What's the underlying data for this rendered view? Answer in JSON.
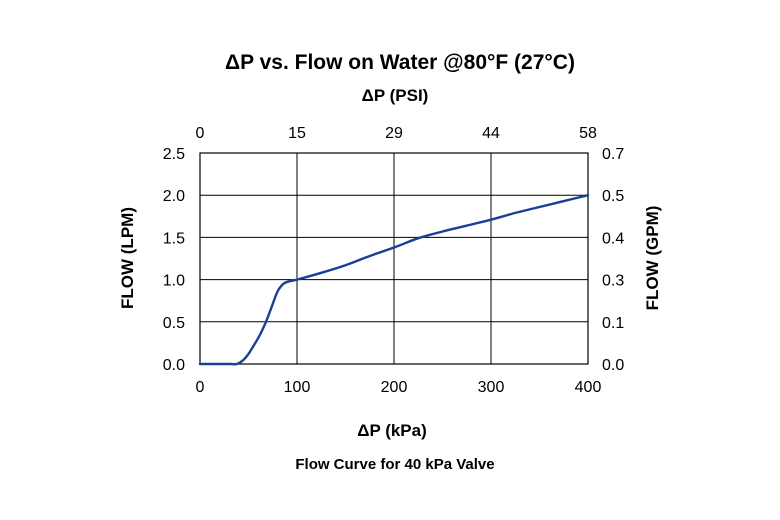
{
  "chart_data": {
    "type": "line",
    "title": "ΔP vs. Flow on Water @80°F (27°C)",
    "caption": "Flow Curve for 40 kPa Valve",
    "x_axis": {
      "label": "ΔP (kPa)",
      "range": [
        0,
        400
      ],
      "ticks": [
        "0",
        "100",
        "200",
        "300",
        "400"
      ]
    },
    "x2_axis": {
      "label": "ΔP (PSI)",
      "range": [
        0,
        58
      ],
      "ticks": [
        "0",
        "15",
        "29",
        "44",
        "58"
      ]
    },
    "y_axis": {
      "label": "FLOW (LPM)",
      "range": [
        0,
        2.5
      ],
      "ticks": [
        "0.0",
        "0.5",
        "1.0",
        "1.5",
        "2.0",
        "2.5"
      ]
    },
    "y2_axis": {
      "label": "FLOW (GPM)",
      "range": [
        0,
        0.7
      ],
      "ticks": [
        "0.0",
        "0.1",
        "0.3",
        "0.4",
        "0.5",
        "0.7"
      ]
    },
    "grid": true,
    "legend": "none",
    "line_color": "#1a3e96",
    "series": [
      {
        "x": [
          0,
          15,
          25,
          32,
          38,
          44,
          50,
          56,
          62,
          68,
          74,
          80,
          86,
          92,
          100,
          125,
          150,
          175,
          200,
          225,
          250,
          275,
          300,
          325,
          350,
          375,
          400
        ],
        "y": [
          0.0,
          0.0,
          0.0,
          0.0,
          0.0,
          0.04,
          0.12,
          0.23,
          0.35,
          0.5,
          0.68,
          0.86,
          0.95,
          0.98,
          1.0,
          1.08,
          1.17,
          1.28,
          1.38,
          1.49,
          1.57,
          1.64,
          1.71,
          1.79,
          1.86,
          1.93,
          2.0
        ]
      }
    ]
  }
}
